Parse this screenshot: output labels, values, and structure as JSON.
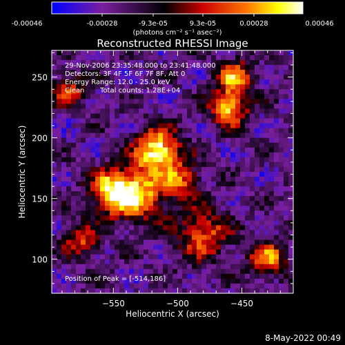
{
  "colorbar": {
    "tick_labels": [
      "-0.00046",
      "-0.00028",
      "-9.3e-05",
      "9.3e-05",
      "0.00028",
      "0.00046"
    ],
    "unit_label": "(photons cm⁻² s⁻¹ asec⁻²)"
  },
  "footer": {
    "date": "8-May-2022 00:49"
  },
  "chart_data": {
    "type": "heatmap",
    "title": "Reconstructed RHESSI Image",
    "xlabel": "Heliocentric X (arcsec)",
    "ylabel": "Heliocentric Y (arcsec)",
    "xlim": [
      -598,
      -410
    ],
    "ylim": [
      72,
      272
    ],
    "x_ticks": [
      -550,
      -500,
      -450
    ],
    "y_ticks": [
      100,
      150,
      200,
      250
    ],
    "x_tick_labels": [
      "−550",
      "−500",
      "−450"
    ],
    "y_tick_labels": [
      "100",
      "150",
      "200",
      "250"
    ],
    "value_range": [
      -0.00046,
      0.00046
    ],
    "colormap": [
      "#0000ff",
      "#7a1fa0",
      "#000000",
      "#cc0000",
      "#ff7a00",
      "#ffff00",
      "#ffffff"
    ],
    "annotations": {
      "time_range": "29-Nov-2006 23:35:48.000 to 23:41:48.000",
      "detectors": "Detectors: 3F 4F 5F 6F 7F 8F, Att 0",
      "energy": "Energy Range: 12.0 - 25.0 keV",
      "clean_label": "Clean",
      "total_counts": "Total counts: 1.28E+04",
      "peak": "Position of Peak = [-514,186]"
    },
    "peak_position": [
      -514,
      186
    ],
    "bright_sources": [
      {
        "x": -515,
        "y": 190,
        "sigma": 12,
        "amp": 1.0
      },
      {
        "x": -530,
        "y": 155,
        "sigma": 16,
        "amp": 0.8
      },
      {
        "x": -552,
        "y": 155,
        "sigma": 12,
        "amp": 0.75
      },
      {
        "x": -460,
        "y": 225,
        "sigma": 10,
        "amp": 0.85
      },
      {
        "x": -455,
        "y": 250,
        "sigma": 10,
        "amp": 0.7
      },
      {
        "x": -480,
        "y": 120,
        "sigma": 14,
        "amp": 0.65
      },
      {
        "x": -430,
        "y": 100,
        "sigma": 10,
        "amp": 0.7
      },
      {
        "x": -575,
        "y": 115,
        "sigma": 10,
        "amp": 0.55
      },
      {
        "x": -585,
        "y": 240,
        "sigma": 10,
        "amp": 0.5
      },
      {
        "x": -495,
        "y": 165,
        "sigma": 10,
        "amp": 0.55
      }
    ]
  }
}
